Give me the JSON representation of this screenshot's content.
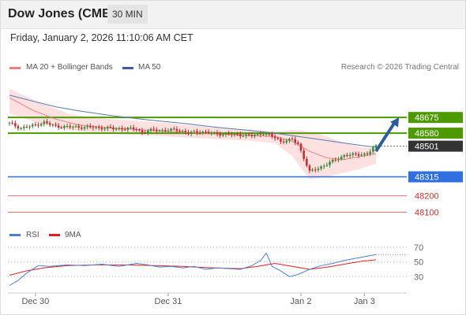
{
  "header": {
    "title": "Dow Jones (CME)",
    "timeframe": "30 MIN"
  },
  "timestamp": "Friday, January 2, 2026 11:10:06 AM CET",
  "legend": {
    "ma20_label": "MA 20 + Bollinger Bands",
    "ma50_label": "MA 50",
    "ma20_color": "#f08080",
    "ma50_color": "#3a5fa0",
    "copyright": "Research © 2026 Trading Central"
  },
  "rsi_legend": {
    "rsi_label": "RSI",
    "ma9_label": "9MA",
    "rsi_color": "#4a7fd4",
    "ma9_color": "#e02020"
  },
  "colors": {
    "resistance": "#4c9a00",
    "support": "#2f6fe0",
    "minor_support": "#e87070",
    "current": "#333333",
    "bollinger": "#fde0e0",
    "candle_up": "#3a8a3a",
    "candle_down": "#c03030",
    "arrow": "#2a5d9a"
  },
  "chart_data": [
    {
      "type": "candlestick",
      "title": "Dow Jones (CME)",
      "ylim": [
        48050,
        48910
      ],
      "x_tick_labels": [
        "Dec 30",
        "Dec 31",
        "Jan 2",
        "Jan 3"
      ],
      "x_tick_index": [
        9,
        55,
        101,
        123
      ],
      "n_bars": 128,
      "keypoints": [
        [
          0,
          48640
        ],
        [
          4,
          48610
        ],
        [
          8,
          48625
        ],
        [
          12,
          48645
        ],
        [
          16,
          48622
        ],
        [
          20,
          48618
        ],
        [
          28,
          48615
        ],
        [
          36,
          48608
        ],
        [
          44,
          48606
        ],
        [
          46,
          48585
        ],
        [
          50,
          48600
        ],
        [
          54,
          48595
        ],
        [
          58,
          48602
        ],
        [
          62,
          48580
        ],
        [
          66,
          48590
        ],
        [
          72,
          48575
        ],
        [
          80,
          48570
        ],
        [
          84,
          48565
        ],
        [
          88,
          48580
        ],
        [
          92,
          48552
        ],
        [
          94,
          48530
        ],
        [
          98,
          48540
        ],
        [
          100,
          48515
        ],
        [
          104,
          48345
        ],
        [
          108,
          48375
        ],
        [
          112,
          48410
        ],
        [
          116,
          48445
        ],
        [
          120,
          48450
        ],
        [
          124,
          48455
        ],
        [
          127,
          48501
        ]
      ],
      "ma20": [
        [
          0,
          48795
        ],
        [
          8,
          48720
        ],
        [
          16,
          48665
        ],
        [
          24,
          48630
        ],
        [
          36,
          48610
        ],
        [
          48,
          48598
        ],
        [
          60,
          48585
        ],
        [
          72,
          48575
        ],
        [
          84,
          48565
        ],
        [
          92,
          48560
        ],
        [
          98,
          48530
        ],
        [
          104,
          48470
        ],
        [
          110,
          48430
        ],
        [
          116,
          48420
        ],
        [
          122,
          48440
        ],
        [
          127,
          48455
        ]
      ],
      "bollinger_upper": [
        [
          0,
          48850
        ],
        [
          10,
          48770
        ],
        [
          20,
          48700
        ],
        [
          30,
          48670
        ],
        [
          44,
          48655
        ],
        [
          56,
          48640
        ],
        [
          70,
          48615
        ],
        [
          82,
          48600
        ],
        [
          92,
          48590
        ],
        [
          98,
          48600
        ],
        [
          104,
          48590
        ],
        [
          110,
          48560
        ],
        [
          116,
          48520
        ],
        [
          122,
          48495
        ],
        [
          127,
          48490
        ]
      ],
      "bollinger_lower": [
        [
          0,
          48700
        ],
        [
          10,
          48640
        ],
        [
          20,
          48600
        ],
        [
          30,
          48580
        ],
        [
          44,
          48570
        ],
        [
          56,
          48560
        ],
        [
          70,
          48545
        ],
        [
          82,
          48535
        ],
        [
          92,
          48520
        ],
        [
          98,
          48440
        ],
        [
          104,
          48300
        ],
        [
          110,
          48315
        ],
        [
          116,
          48340
        ],
        [
          122,
          48365
        ],
        [
          127,
          48395
        ]
      ],
      "ma50": [
        [
          0,
          48810
        ],
        [
          8,
          48775
        ],
        [
          16,
          48740
        ],
        [
          24,
          48715
        ],
        [
          36,
          48685
        ],
        [
          48,
          48660
        ],
        [
          60,
          48640
        ],
        [
          72,
          48615
        ],
        [
          84,
          48595
        ],
        [
          92,
          48580
        ],
        [
          100,
          48560
        ],
        [
          108,
          48540
        ],
        [
          116,
          48520
        ],
        [
          122,
          48505
        ],
        [
          127,
          48495
        ]
      ],
      "levels": [
        {
          "label": "48675",
          "value": 48675,
          "kind": "resistance"
        },
        {
          "label": "48580",
          "value": 48580,
          "kind": "resistance"
        },
        {
          "label": "48501",
          "value": 48501,
          "kind": "current"
        },
        {
          "label": "48315",
          "value": 48315,
          "kind": "support"
        },
        {
          "label": "48200",
          "value": 48200,
          "kind": "minor_support"
        },
        {
          "label": "48100",
          "value": 48100,
          "kind": "minor_support"
        }
      ],
      "forecast_arrow": {
        "from": [
          127,
          48470
        ],
        "to": [
          135,
          48675
        ]
      }
    },
    {
      "type": "line",
      "title": "RSI",
      "ylim": [
        10,
        85
      ],
      "y_ticks": [
        70,
        50,
        30
      ],
      "rsi": [
        [
          0,
          18
        ],
        [
          3,
          25
        ],
        [
          6,
          35
        ],
        [
          10,
          45
        ],
        [
          14,
          44
        ],
        [
          20,
          46
        ],
        [
          26,
          45
        ],
        [
          32,
          47
        ],
        [
          38,
          44
        ],
        [
          44,
          48
        ],
        [
          48,
          46
        ],
        [
          52,
          43
        ],
        [
          56,
          44
        ],
        [
          60,
          42
        ],
        [
          64,
          44
        ],
        [
          68,
          40
        ],
        [
          72,
          42
        ],
        [
          76,
          41
        ],
        [
          80,
          40
        ],
        [
          84,
          45
        ],
        [
          87,
          52
        ],
        [
          89,
          62
        ],
        [
          91,
          44
        ],
        [
          94,
          38
        ],
        [
          97,
          30
        ],
        [
          100,
          33
        ],
        [
          104,
          40
        ],
        [
          108,
          45
        ],
        [
          112,
          48
        ],
        [
          116,
          52
        ],
        [
          120,
          55
        ],
        [
          124,
          58
        ],
        [
          127,
          60
        ]
      ],
      "ma9": [
        [
          0,
          32
        ],
        [
          6,
          38
        ],
        [
          12,
          42
        ],
        [
          20,
          45
        ],
        [
          30,
          46
        ],
        [
          40,
          46
        ],
        [
          50,
          45
        ],
        [
          60,
          44
        ],
        [
          70,
          42
        ],
        [
          80,
          41
        ],
        [
          86,
          44
        ],
        [
          92,
          48
        ],
        [
          98,
          44
        ],
        [
          104,
          40
        ],
        [
          110,
          43
        ],
        [
          116,
          47
        ],
        [
          122,
          51
        ],
        [
          127,
          53
        ]
      ]
    }
  ]
}
